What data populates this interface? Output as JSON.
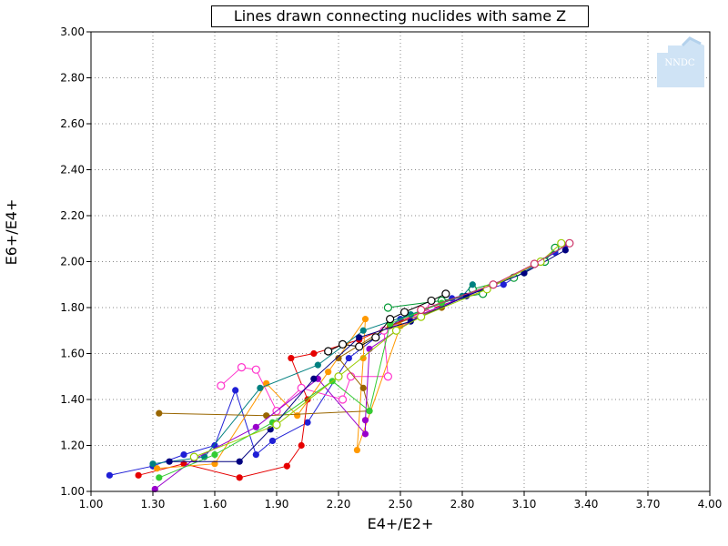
{
  "chart_data": {
    "type": "scatter",
    "title": "Lines drawn connecting nuclides with same Z",
    "xlabel": "E4+/E2+",
    "ylabel": "E6+/E4+",
    "xlim": [
      1.0,
      4.0
    ],
    "ylim": [
      1.0,
      3.0
    ],
    "x_ticks": [
      "1.00",
      "1.30",
      "1.60",
      "1.90",
      "2.20",
      "2.50",
      "2.80",
      "3.10",
      "3.40",
      "3.70",
      "4.00"
    ],
    "y_ticks": [
      "1.00",
      "1.20",
      "1.40",
      "1.60",
      "1.80",
      "2.00",
      "2.20",
      "2.40",
      "2.60",
      "2.80",
      "3.00"
    ],
    "grid": true,
    "series": [
      {
        "color": "#1f1fd6",
        "marker": "dot",
        "points": [
          [
            1.09,
            1.07
          ],
          [
            1.3,
            1.11
          ],
          [
            1.45,
            1.16
          ],
          [
            1.6,
            1.2
          ],
          [
            1.7,
            1.44
          ],
          [
            1.8,
            1.16
          ],
          [
            1.88,
            1.22
          ],
          [
            2.05,
            1.3
          ],
          [
            2.25,
            1.58
          ],
          [
            2.5,
            1.75
          ],
          [
            2.75,
            1.84
          ],
          [
            3.0,
            1.9
          ],
          [
            3.25,
            2.04
          ],
          [
            3.3,
            2.07
          ]
        ]
      },
      {
        "color": "#e60000",
        "marker": "dot",
        "points": [
          [
            1.23,
            1.07
          ],
          [
            1.45,
            1.12
          ],
          [
            1.72,
            1.06
          ],
          [
            1.95,
            1.11
          ],
          [
            2.02,
            1.2
          ],
          [
            2.05,
            1.4
          ],
          [
            1.97,
            1.58
          ],
          [
            2.08,
            1.6
          ],
          [
            2.3,
            1.66
          ],
          [
            2.6,
            1.78
          ],
          [
            2.9,
            1.87
          ]
        ]
      },
      {
        "color": "#ff33cc",
        "marker": "ring",
        "points": [
          [
            1.63,
            1.46
          ],
          [
            1.73,
            1.54
          ],
          [
            1.8,
            1.53
          ],
          [
            1.9,
            1.35
          ],
          [
            2.02,
            1.45
          ],
          [
            2.22,
            1.4
          ],
          [
            2.26,
            1.5
          ],
          [
            2.44,
            1.5
          ],
          [
            2.42,
            1.7
          ],
          [
            2.65,
            1.8
          ]
        ]
      },
      {
        "color": "#009933",
        "marker": "ring",
        "points": [
          [
            2.44,
            1.8
          ],
          [
            2.7,
            1.83
          ],
          [
            2.9,
            1.86
          ],
          [
            2.85,
            1.88
          ],
          [
            3.05,
            1.93
          ],
          [
            3.2,
            2.0
          ],
          [
            3.25,
            2.06
          ]
        ]
      },
      {
        "color": "#ff9900",
        "marker": "dot",
        "points": [
          [
            1.32,
            1.1
          ],
          [
            1.6,
            1.12
          ],
          [
            1.85,
            1.47
          ],
          [
            2.0,
            1.33
          ],
          [
            2.15,
            1.52
          ],
          [
            2.33,
            1.75
          ],
          [
            2.32,
            1.58
          ],
          [
            2.29,
            1.18
          ],
          [
            2.5,
            1.72
          ],
          [
            2.7,
            1.8
          ]
        ]
      },
      {
        "color": "#008080",
        "marker": "dot",
        "points": [
          [
            1.3,
            1.12
          ],
          [
            1.55,
            1.15
          ],
          [
            1.82,
            1.45
          ],
          [
            2.1,
            1.55
          ],
          [
            2.32,
            1.7
          ],
          [
            2.55,
            1.77
          ],
          [
            2.8,
            1.85
          ],
          [
            2.85,
            1.9
          ]
        ]
      },
      {
        "color": "#996600",
        "marker": "dot",
        "points": [
          [
            1.33,
            1.34
          ],
          [
            1.85,
            1.33
          ],
          [
            2.35,
            1.35
          ],
          [
            2.32,
            1.45
          ],
          [
            2.2,
            1.58
          ],
          [
            2.45,
            1.72
          ],
          [
            2.7,
            1.8
          ]
        ]
      },
      {
        "color": "#9900cc",
        "marker": "dot",
        "points": [
          [
            1.31,
            1.01
          ],
          [
            1.5,
            1.14
          ],
          [
            1.8,
            1.28
          ],
          [
            2.1,
            1.49
          ],
          [
            2.33,
            1.25
          ],
          [
            2.33,
            1.31
          ],
          [
            2.35,
            1.62
          ],
          [
            2.6,
            1.77
          ],
          [
            2.95,
            1.9
          ]
        ]
      },
      {
        "color": "#33cc33",
        "marker": "dot",
        "points": [
          [
            1.33,
            1.06
          ],
          [
            1.6,
            1.16
          ],
          [
            1.88,
            1.3
          ],
          [
            2.17,
            1.48
          ],
          [
            2.35,
            1.35
          ],
          [
            2.45,
            1.73
          ],
          [
            2.7,
            1.82
          ],
          [
            3.1,
            1.95
          ]
        ]
      },
      {
        "color": "#000000",
        "marker": "ring",
        "points": [
          [
            2.15,
            1.61
          ],
          [
            2.22,
            1.64
          ],
          [
            2.3,
            1.63
          ],
          [
            2.38,
            1.67
          ],
          [
            2.45,
            1.75
          ],
          [
            2.52,
            1.78
          ],
          [
            2.65,
            1.83
          ],
          [
            2.72,
            1.86
          ]
        ]
      },
      {
        "color": "#000080",
        "marker": "dot",
        "points": [
          [
            1.38,
            1.13
          ],
          [
            1.72,
            1.13
          ],
          [
            1.87,
            1.27
          ],
          [
            2.08,
            1.49
          ],
          [
            2.3,
            1.67
          ],
          [
            2.55,
            1.74
          ],
          [
            2.82,
            1.85
          ],
          [
            3.1,
            1.95
          ],
          [
            3.3,
            2.05
          ]
        ]
      },
      {
        "color": "#99cc00",
        "marker": "ring",
        "points": [
          [
            1.5,
            1.15
          ],
          [
            1.9,
            1.29
          ],
          [
            2.2,
            1.5
          ],
          [
            2.48,
            1.7
          ],
          [
            2.6,
            1.76
          ],
          [
            2.92,
            1.88
          ],
          [
            3.18,
            2.0
          ],
          [
            3.28,
            2.08
          ]
        ]
      },
      {
        "color": "#cc3366",
        "marker": "ring",
        "points": [
          [
            2.6,
            1.79
          ],
          [
            2.95,
            1.9
          ],
          [
            3.15,
            1.99
          ],
          [
            3.32,
            2.08
          ]
        ]
      }
    ]
  },
  "logo": {
    "text": "NNDC"
  }
}
